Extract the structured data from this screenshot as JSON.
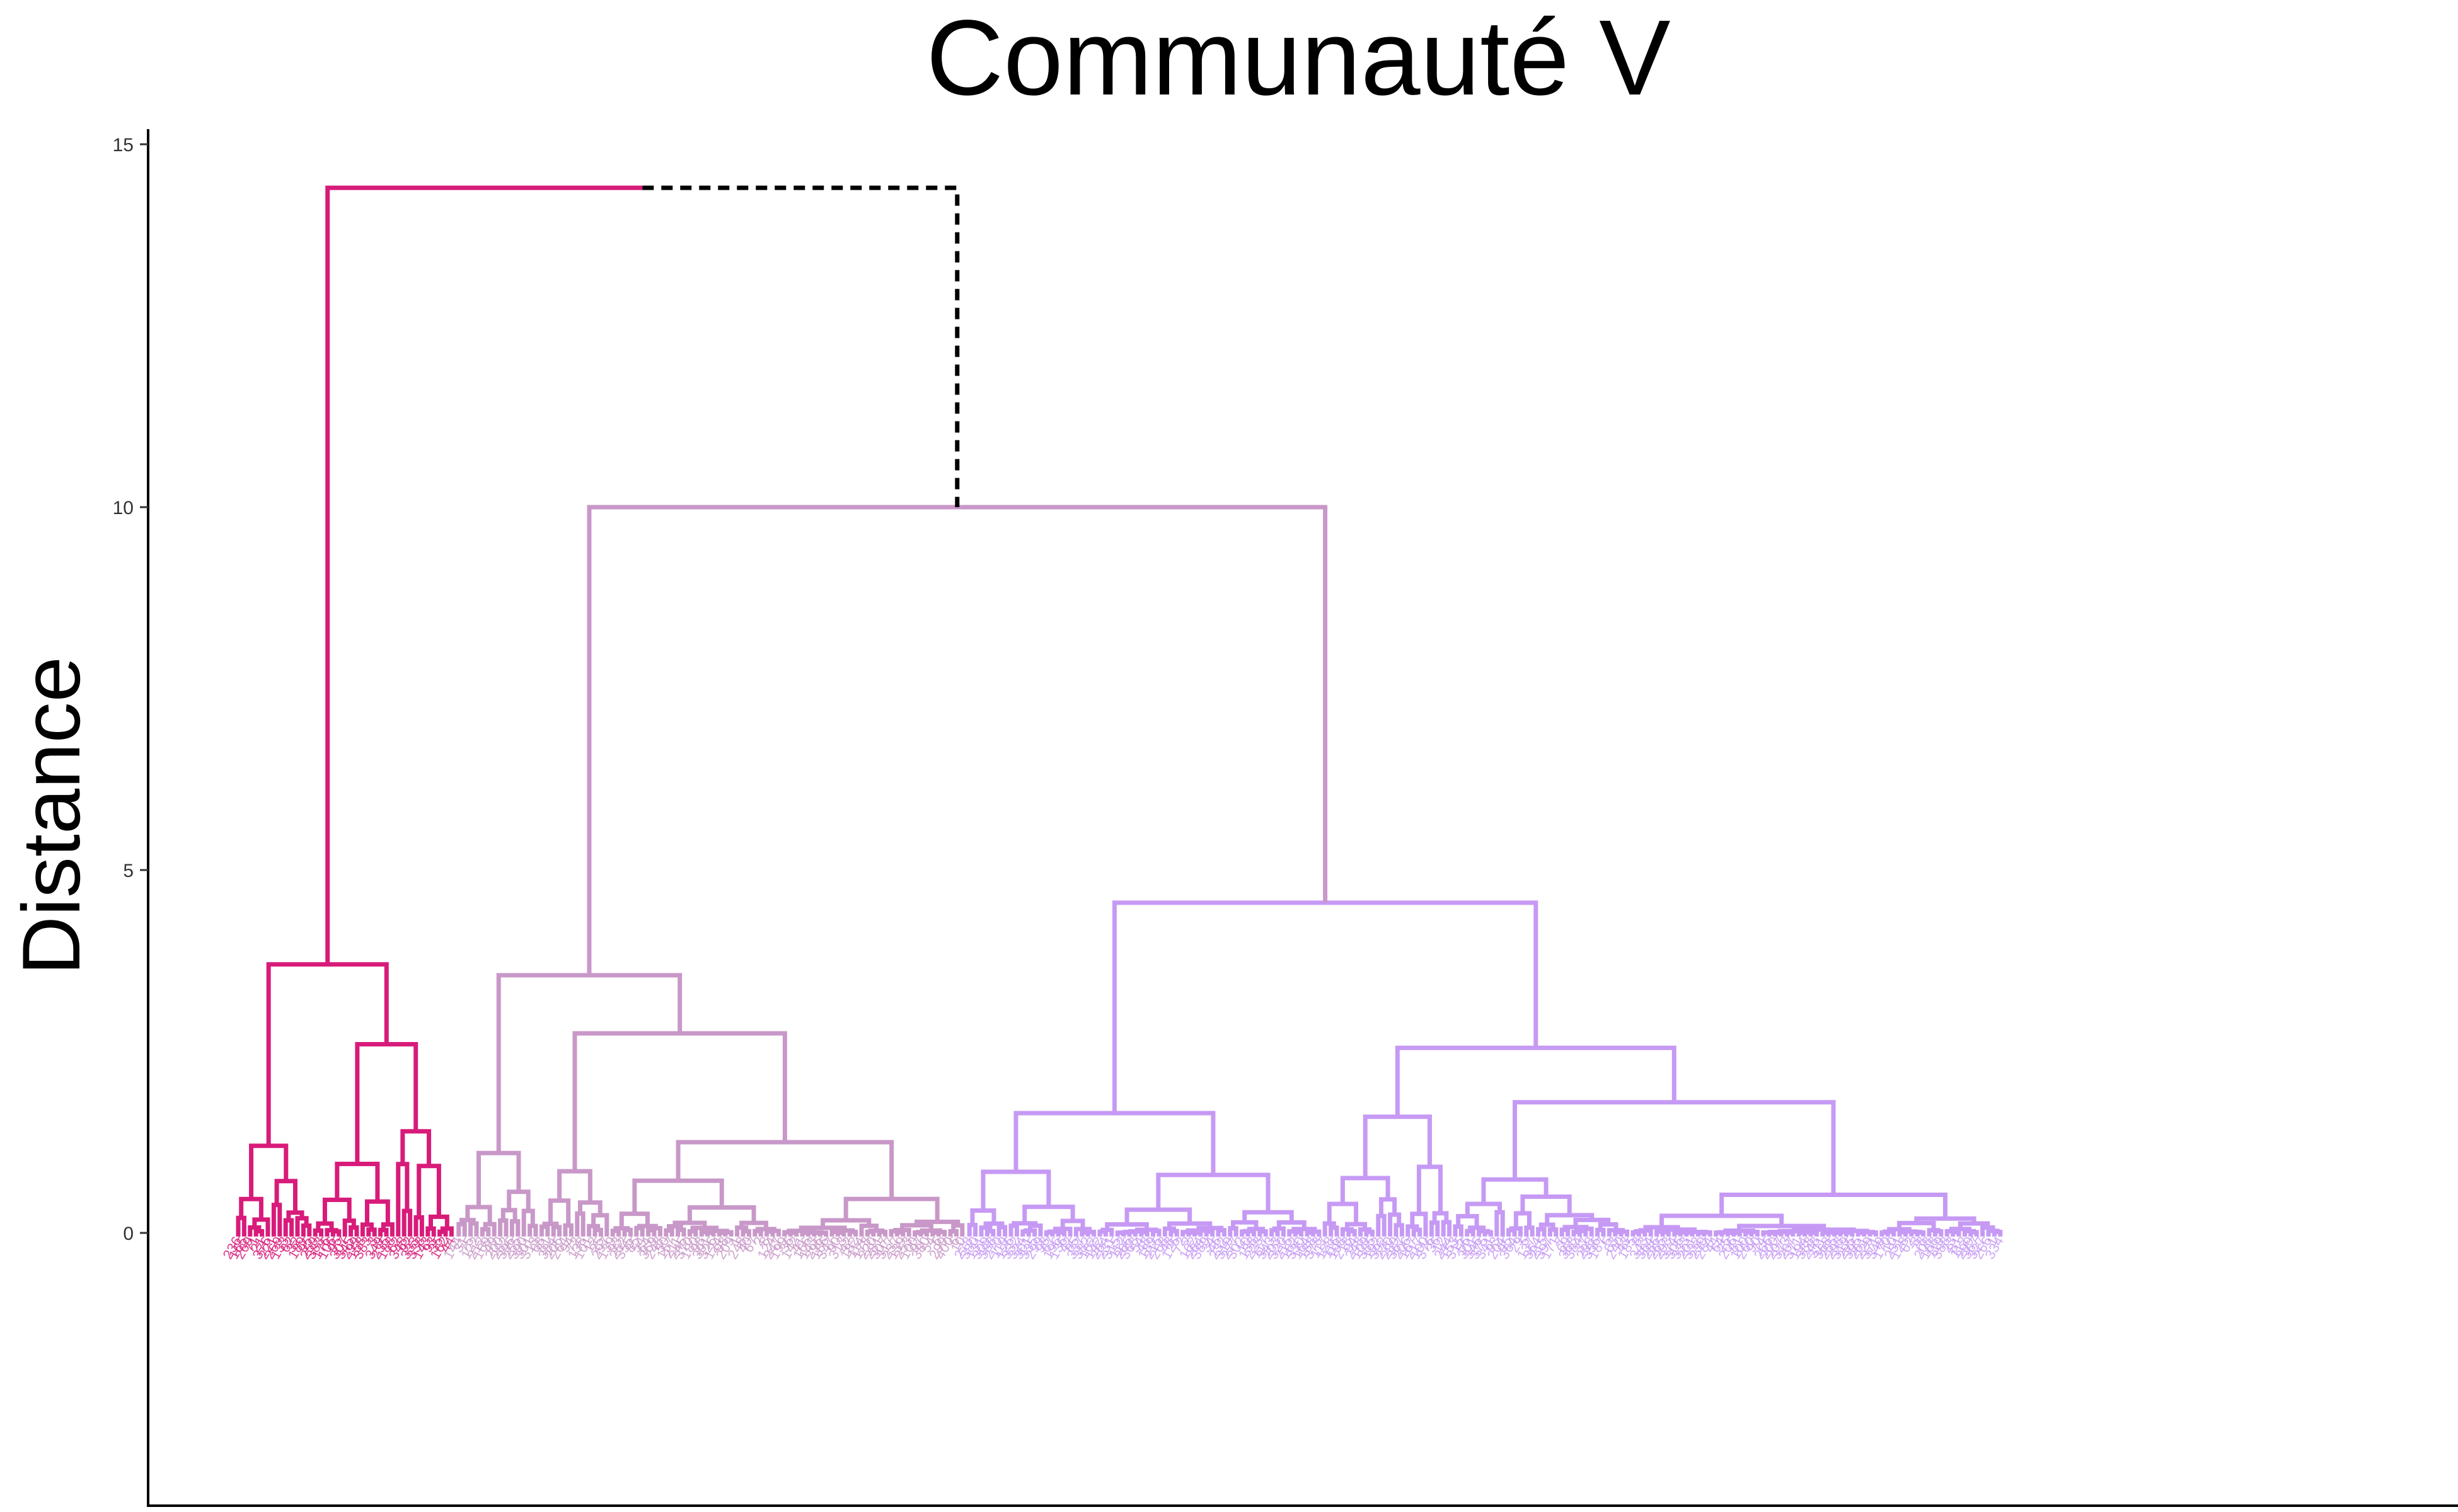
{
  "chart_data": {
    "type": "dendrogram",
    "title": "Communauté V",
    "xlabel": "",
    "ylabel": "Distance",
    "ylim": [
      -3.8,
      15.2
    ],
    "y_ticks": [
      0,
      5,
      10,
      15
    ],
    "grid": false,
    "clusters": [
      {
        "color": "#D81B7A",
        "merge_height": 3.7,
        "subclusters": [
          {
            "merge_height": 1.2,
            "leaves": 13
          },
          {
            "merge_height": 2.6,
            "groups": [
              {
                "merge_height": 0.95,
                "leaves": 14
              },
              {
                "merge_height": 1.4,
                "leaves": 10
              }
            ]
          }
        ]
      },
      {
        "color": "#C898C8",
        "merge_height": 3.55,
        "subclusters": [
          {
            "merge_height": 1.1,
            "leaves": 14
          },
          {
            "merge_height": 2.75,
            "groups": [
              {
                "merge_height": 0.85,
                "leaves": 12
              },
              {
                "merge_height": 1.25,
                "leaves": 60
              }
            ]
          }
        ]
      },
      {
        "color": "#C69AF4",
        "merge_height": 4.55,
        "subclusters": [
          {
            "merge_height": 1.65,
            "leaves": 60
          },
          {
            "merge_height": 2.55,
            "groups": [
              {
                "merge_height": 1.6,
                "leaves": 22
              },
              {
                "merge_height": 1.8,
                "leaves": 93
              }
            ]
          }
        ]
      }
    ],
    "joins": [
      {
        "between": [
          "cluster-2",
          "cluster-3"
        ],
        "height": 10.0,
        "color": "#C898C8"
      },
      {
        "between": [
          "cluster-1",
          "clusters-2-3"
        ],
        "height": 14.4,
        "color": "#D81B7A",
        "dashed_segment_color": "#000000"
      }
    ]
  }
}
